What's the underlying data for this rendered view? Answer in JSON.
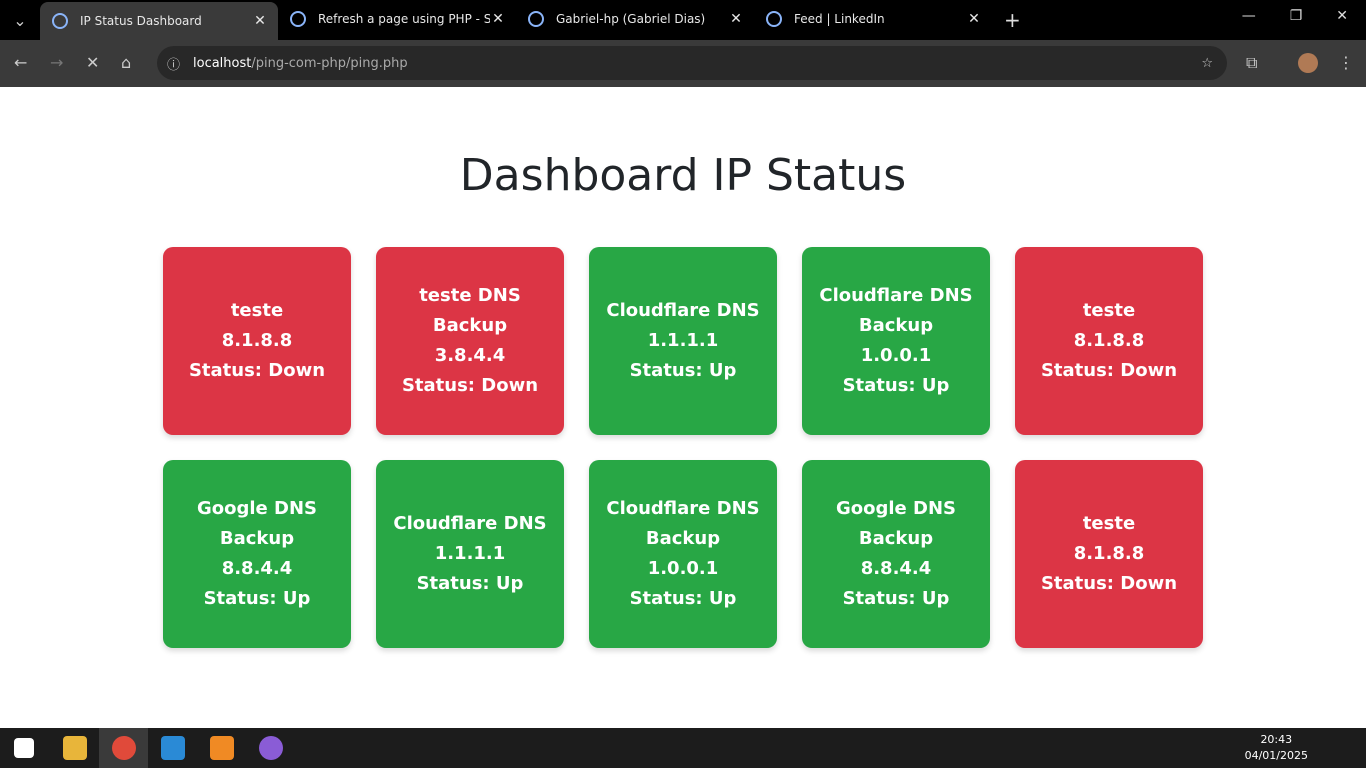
{
  "browser": {
    "tabs": [
      {
        "title": "IP Status Dashboard",
        "active": true
      },
      {
        "title": "Refresh a page using PHP - Stac",
        "active": false
      },
      {
        "title": "Gabriel-hp (Gabriel Dias)",
        "active": false
      },
      {
        "title": "Feed | LinkedIn",
        "active": false
      }
    ],
    "url": {
      "host": "localhost",
      "path": "/ping-com-php/ping.php"
    }
  },
  "page": {
    "title": "Dashboard IP Status",
    "cards": [
      {
        "name": "teste",
        "ip": "8.1.8.8",
        "status": "Status: Down",
        "color": "#dc3545"
      },
      {
        "name": "teste DNS Backup",
        "ip": "3.8.4.4",
        "status": "Status: Down",
        "color": "#dc3545"
      },
      {
        "name": "Cloudflare DNS",
        "ip": "1.1.1.1",
        "status": "Status: Up",
        "color": "#28a745"
      },
      {
        "name": "Cloudflare DNS Backup",
        "ip": "1.0.0.1",
        "status": "Status: Up",
        "color": "#28a745"
      },
      {
        "name": "teste",
        "ip": "8.1.8.8",
        "status": "Status: Down",
        "color": "#dc3545"
      },
      {
        "name": "Google DNS Backup",
        "ip": "8.8.4.4",
        "status": "Status: Up",
        "color": "#28a745"
      },
      {
        "name": "Cloudflare DNS",
        "ip": "1.1.1.1",
        "status": "Status: Up",
        "color": "#28a745"
      },
      {
        "name": "Cloudflare DNS Backup",
        "ip": "1.0.0.1",
        "status": "Status: Up",
        "color": "#28a745"
      },
      {
        "name": "Google DNS Backup",
        "ip": "8.8.4.4",
        "status": "Status: Up",
        "color": "#28a745"
      },
      {
        "name": "teste",
        "ip": "8.1.8.8",
        "status": "Status: Down",
        "color": "#dc3545"
      }
    ]
  },
  "taskbar": {
    "time": "20:43",
    "date": "04/01/2025"
  }
}
